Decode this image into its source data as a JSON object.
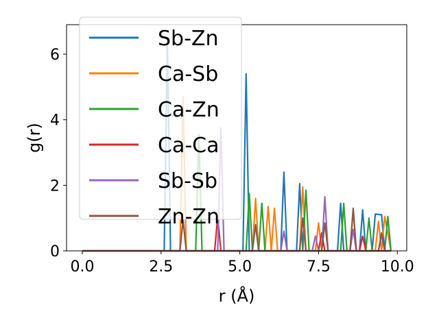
{
  "chart_data": {
    "type": "line",
    "xlabel": "r (Å)",
    "ylabel": "g(r)",
    "xlim": [
      -0.5,
      10.3
    ],
    "ylim": [
      0,
      6.9
    ],
    "xticks": [
      0.0,
      2.5,
      5.0,
      7.5,
      10.0
    ],
    "xtick_labels": [
      "0.0",
      "2.5",
      "5.0",
      "7.5",
      "10.0"
    ],
    "yticks": [
      0,
      2,
      4,
      6
    ],
    "ytick_labels": [
      "0",
      "2",
      "4",
      "6"
    ],
    "grid": false,
    "legend_position": "top-left",
    "series": [
      {
        "name": "Sb-Zn",
        "color": "#1f77b4",
        "x": [
          0,
          2.6,
          2.7,
          2.8,
          5.1,
          5.2,
          5.3,
          6.3,
          6.4,
          6.5,
          6.8,
          6.9,
          7.0,
          8.1,
          8.2,
          8.3,
          8.8,
          8.9,
          9.0,
          9.2,
          9.3,
          9.5,
          9.6,
          9.8
        ],
        "y": [
          0,
          0,
          6.5,
          0,
          0,
          5.4,
          0,
          0,
          2.4,
          0,
          0,
          2.05,
          0,
          0,
          1.45,
          0,
          0,
          1.25,
          0,
          0,
          1.12,
          1.1,
          0,
          0
        ]
      },
      {
        "name": "Ca-Sb",
        "color": "#ff7f0e",
        "x": [
          0,
          3.1,
          3.2,
          3.3,
          5.4,
          5.5,
          5.6,
          5.8,
          5.9,
          6.0,
          6.1,
          6.2,
          6.9,
          7.0,
          7.1,
          7.4,
          7.5,
          7.6,
          8.5,
          8.6,
          8.7,
          9.3,
          9.4,
          9.5,
          9.6,
          9.8
        ],
        "y": [
          0,
          0,
          4.7,
          0,
          0,
          1.6,
          0,
          0,
          1.35,
          0,
          1.3,
          0,
          0,
          1.95,
          0,
          0,
          0.85,
          0,
          0,
          1.25,
          0,
          0,
          0.9,
          0,
          1.05,
          0
        ]
      },
      {
        "name": "Ca-Zn",
        "color": "#2ca02c",
        "x": [
          0,
          3.6,
          3.7,
          3.8,
          5.2,
          5.3,
          5.4,
          5.6,
          5.7,
          5.8,
          7.0,
          7.1,
          7.2,
          8.2,
          8.3,
          8.4,
          9.0,
          9.1,
          9.2,
          9.6,
          9.7,
          9.8
        ],
        "y": [
          0,
          0,
          3.55,
          0,
          0,
          1.75,
          0,
          0,
          1.45,
          0,
          0,
          1.85,
          0,
          0,
          1.45,
          0,
          0,
          1.0,
          0,
          0,
          1.05,
          0
        ]
      },
      {
        "name": "Ca-Ca",
        "color": "#d62728",
        "x": [
          0,
          4.2,
          4.3,
          4.4,
          7.5,
          7.6,
          7.7,
          8.8,
          8.9,
          9.0,
          9.8
        ],
        "y": [
          0,
          0,
          1.05,
          0,
          0,
          0.55,
          0,
          0,
          0.45,
          0,
          0
        ]
      },
      {
        "name": "Sb-Sb",
        "color": "#9467bd",
        "x": [
          0,
          4.3,
          4.4,
          4.5,
          6.3,
          6.4,
          6.5,
          7.3,
          7.4,
          7.5,
          7.6,
          7.7,
          7.8,
          8.5,
          8.6,
          8.7,
          9.4,
          9.5,
          9.6,
          9.8
        ],
        "y": [
          0,
          0,
          3.75,
          0,
          0,
          0.6,
          0,
          0,
          0.45,
          0,
          0,
          1.65,
          0,
          0,
          0.65,
          0,
          0,
          0.5,
          0,
          0
        ]
      },
      {
        "name": "Zn-Zn",
        "color": "#8c564b",
        "x": [
          0,
          3.1,
          3.2,
          3.3,
          5.4,
          5.5,
          5.6,
          6.9,
          7.0,
          7.1,
          7.6,
          7.7,
          7.8,
          8.5,
          8.6,
          8.7,
          9.4,
          9.5,
          9.6,
          9.8
        ],
        "y": [
          0,
          0,
          0.95,
          0,
          0,
          0.8,
          0,
          0,
          1.0,
          0,
          0,
          0.85,
          0,
          0,
          1.3,
          0,
          0,
          0.55,
          0,
          0
        ]
      }
    ]
  }
}
